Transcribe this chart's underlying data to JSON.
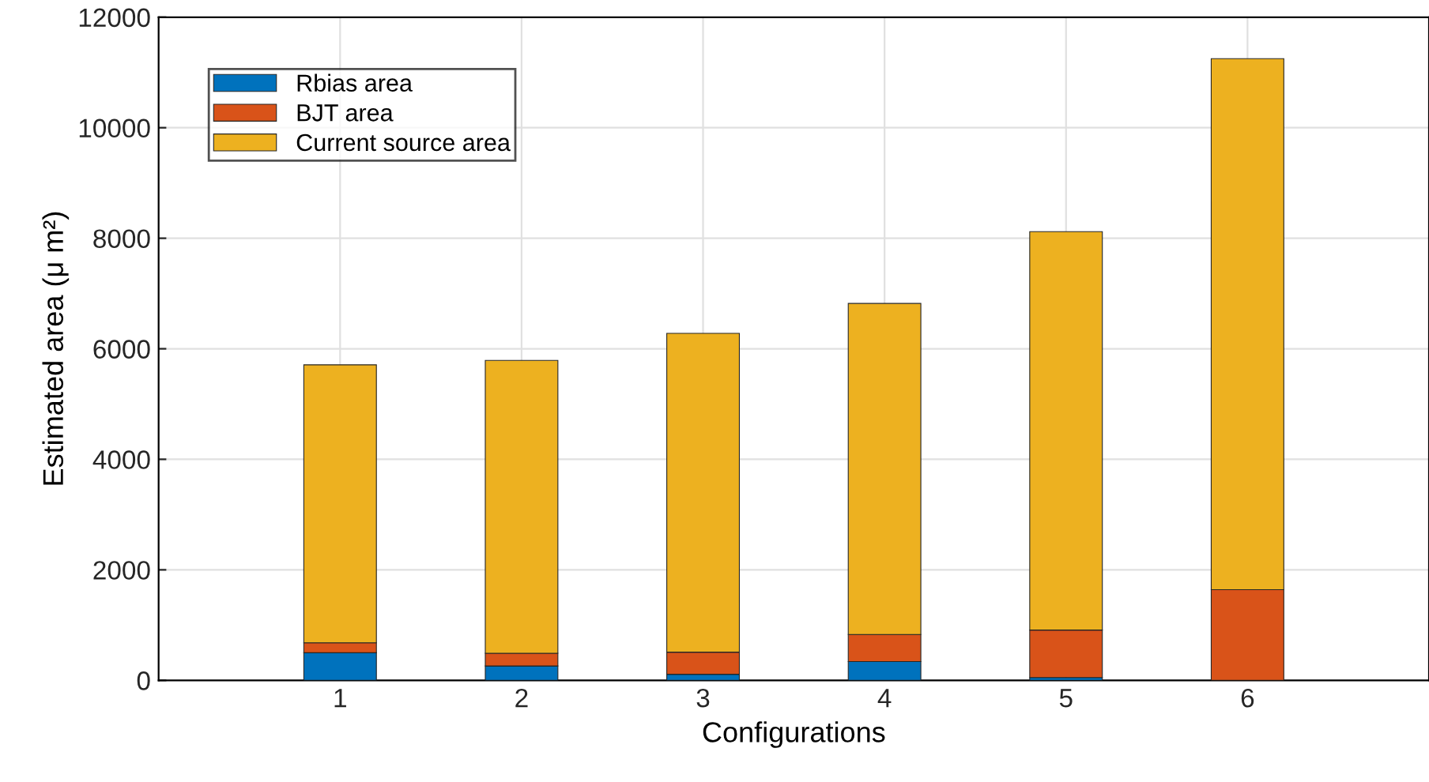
{
  "chart_data": {
    "type": "bar",
    "stacked": true,
    "xlabel": "Configurations",
    "ylabel": "Estimated area (μ m²)",
    "x": [
      1,
      2,
      3,
      4,
      5,
      6
    ],
    "xlim": [
      0,
      7
    ],
    "xticks": [
      1,
      2,
      3,
      4,
      5,
      6
    ],
    "ylim": [
      0,
      12000
    ],
    "yticks": [
      0,
      2000,
      4000,
      6000,
      8000,
      10000,
      12000
    ],
    "grid": true,
    "legend": "top left",
    "series": [
      {
        "name": "Rbias area",
        "color": "#0072bd",
        "values": [
          500,
          260,
          110,
          340,
          50,
          null
        ]
      },
      {
        "name": "BJT area",
        "color": "#d95319",
        "values": [
          180,
          230,
          400,
          490,
          860,
          1640
        ]
      },
      {
        "name": "Current source area",
        "color": "#edb120",
        "values": [
          5030,
          5300,
          5770,
          5990,
          7210,
          9610
        ]
      }
    ]
  }
}
